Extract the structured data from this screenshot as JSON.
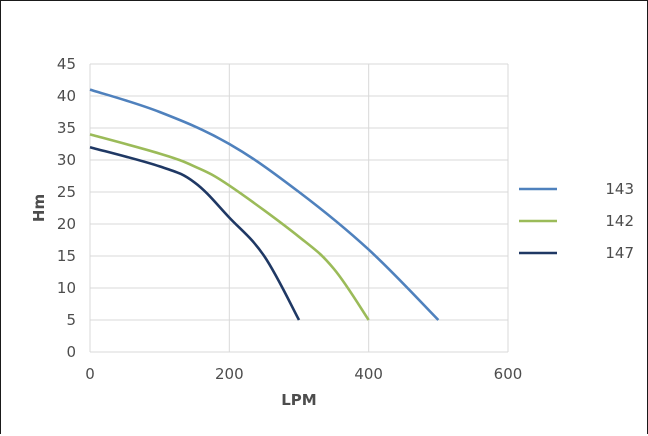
{
  "chart_data": {
    "type": "line",
    "title": "",
    "xlabel": "LPM",
    "ylabel": "Hm",
    "xlim": [
      0,
      600
    ],
    "ylim": [
      0,
      45
    ],
    "xticks": [
      0,
      200,
      400,
      600
    ],
    "yticks": [
      0,
      5,
      10,
      15,
      20,
      25,
      30,
      35,
      40,
      45
    ],
    "grid": "both",
    "legend_position": "right",
    "series": [
      {
        "name": "143",
        "color": "#4f81bd",
        "points": [
          [
            0,
            41
          ],
          [
            100,
            37.5
          ],
          [
            200,
            32.5
          ],
          [
            300,
            25
          ],
          [
            400,
            16
          ],
          [
            500,
            5
          ]
        ]
      },
      {
        "name": "142",
        "color": "#9bbb59",
        "points": [
          [
            0,
            34
          ],
          [
            100,
            31
          ],
          [
            150,
            29
          ],
          [
            200,
            26
          ],
          [
            300,
            18
          ],
          [
            350,
            13
          ],
          [
            400,
            5
          ]
        ]
      },
      {
        "name": "147",
        "color": "#1f3864",
        "points": [
          [
            0,
            32
          ],
          [
            100,
            29
          ],
          [
            150,
            26.5
          ],
          [
            200,
            21
          ],
          [
            250,
            15
          ],
          [
            300,
            5
          ]
        ]
      }
    ]
  }
}
